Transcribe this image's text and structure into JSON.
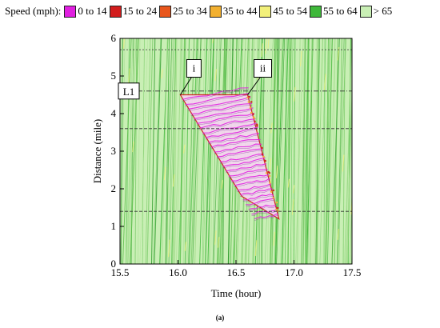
{
  "legend": {
    "title": "Speed (mph):",
    "items": [
      {
        "label": "0 to 14",
        "color": "#e020e0"
      },
      {
        "label": "15 to 24",
        "color": "#d21d1d"
      },
      {
        "label": "25 to 34",
        "color": "#e8561c"
      },
      {
        "label": "35 to 44",
        "color": "#f2b030"
      },
      {
        "label": "45 to 54",
        "color": "#f2f07a"
      },
      {
        "label": "55 to 64",
        "color": "#3fb83a"
      },
      {
        "label": "> 65",
        "color": "#c9efb5"
      }
    ]
  },
  "caption": "(a)",
  "chart_data": {
    "type": "heatmap",
    "xlabel": "Time (hour)",
    "ylabel": "Distance (mile)",
    "xlim": [
      15.5,
      17.5
    ],
    "ylim": [
      0,
      6
    ],
    "xticks": [
      "15.5",
      "16.0",
      "16.5",
      "17.0",
      "17.5"
    ],
    "yticks": [
      "0",
      "1",
      "2",
      "3",
      "4",
      "5",
      "6"
    ],
    "grid": false,
    "horizontal_reference_lines": [
      {
        "y": 5.7,
        "style": "dotted"
      },
      {
        "y": 4.6,
        "style": "dash-dot",
        "label": "L1"
      },
      {
        "y": 3.6,
        "style": "dashed"
      },
      {
        "y": 1.4,
        "style": "dashed"
      }
    ],
    "annotations": [
      {
        "label": "i",
        "x": 16.02,
        "y": 4.5
      },
      {
        "label": "ii",
        "x": 16.6,
        "y": 4.5
      }
    ],
    "congestion_region": {
      "speed_class": "0 to 14",
      "top_left": [
        16.02,
        4.5
      ],
      "top_right": [
        16.6,
        4.5
      ],
      "bottom_left": [
        16.55,
        1.8
      ],
      "bottom_right": [
        16.87,
        1.2
      ]
    },
    "background_speed_class": "> 65"
  }
}
